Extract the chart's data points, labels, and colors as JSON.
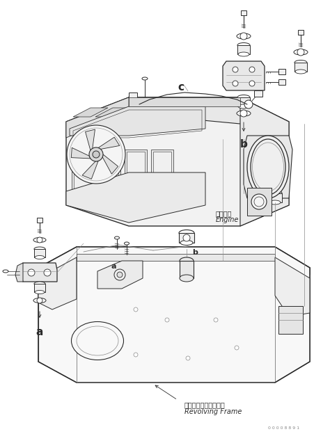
{
  "bg_color": "#ffffff",
  "lc": "#2a2a2a",
  "ll": "#888888",
  "figsize": [
    4.74,
    6.24
  ],
  "dpi": 100,
  "labels": {
    "engine_jp": "エンジン",
    "engine_en": "Engine",
    "frame_jp": "レボルビングフレーム",
    "frame_en": "Revolving Frame",
    "a": "a",
    "b": "b",
    "c": "c"
  },
  "part_number": "0 0 0 0 8 8 9 1"
}
